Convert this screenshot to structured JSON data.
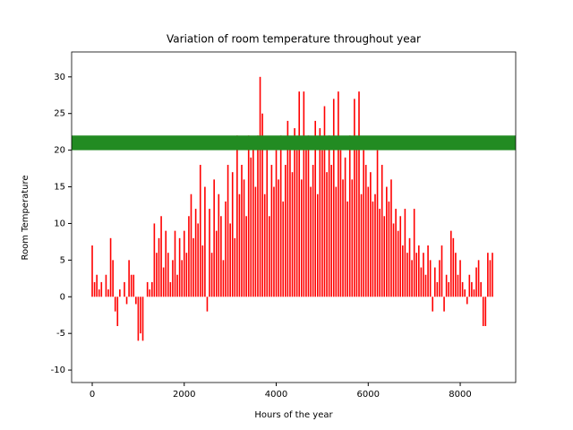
{
  "chart_data": {
    "type": "bar",
    "title": "Variation of room temperature throughout year",
    "x_label": "Hours of the year",
    "y_label": "Room Temperature",
    "color": "#ff0000",
    "x": [
      0,
      50,
      100,
      150,
      200,
      250,
      300,
      350,
      400,
      450,
      500,
      550,
      600,
      650,
      700,
      750,
      800,
      850,
      900,
      950,
      1000,
      1050,
      1100,
      1150,
      1200,
      1250,
      1300,
      1350,
      1400,
      1450,
      1500,
      1550,
      1600,
      1650,
      1700,
      1750,
      1800,
      1850,
      1900,
      1950,
      2000,
      2050,
      2100,
      2150,
      2200,
      2250,
      2300,
      2350,
      2400,
      2450,
      2500,
      2550,
      2600,
      2650,
      2700,
      2750,
      2800,
      2850,
      2900,
      2950,
      3000,
      3050,
      3100,
      3150,
      3200,
      3250,
      3300,
      3350,
      3400,
      3450,
      3500,
      3550,
      3600,
      3650,
      3700,
      3750,
      3800,
      3850,
      3900,
      3950,
      4000,
      4050,
      4100,
      4150,
      4200,
      4250,
      4300,
      4350,
      4400,
      4450,
      4500,
      4550,
      4600,
      4650,
      4700,
      4750,
      4800,
      4850,
      4900,
      4950,
      5000,
      5050,
      5100,
      5150,
      5200,
      5250,
      5300,
      5350,
      5400,
      5450,
      5500,
      5550,
      5600,
      5650,
      5700,
      5750,
      5800,
      5850,
      5900,
      5950,
      6000,
      6050,
      6100,
      6150,
      6200,
      6250,
      6300,
      6350,
      6400,
      6450,
      6500,
      6550,
      6600,
      6650,
      6700,
      6750,
      6800,
      6850,
      6900,
      6950,
      7000,
      7050,
      7100,
      7150,
      7200,
      7250,
      7300,
      7350,
      7400,
      7450,
      7500,
      7550,
      7600,
      7650,
      7700,
      7750,
      7800,
      7850,
      7900,
      7950,
      8000,
      8050,
      8100,
      8150,
      8200,
      8250,
      8300,
      8350,
      8400,
      8450,
      8500,
      8550,
      8600,
      8650,
      8700
    ],
    "values": [
      7,
      2,
      3,
      1,
      2,
      0,
      3,
      1,
      8,
      5,
      -2,
      -4,
      1,
      0,
      2,
      -1,
      5,
      3,
      3,
      -1,
      -6,
      -5,
      -6,
      0,
      2,
      1,
      2,
      10,
      6,
      8,
      11,
      4,
      9,
      6,
      2,
      5,
      9,
      3,
      8,
      5,
      9,
      6,
      11,
      14,
      8,
      12,
      10,
      18,
      7,
      15,
      -2,
      12,
      6,
      16,
      9,
      14,
      11,
      5,
      13,
      18,
      10,
      17,
      8,
      22,
      14,
      18,
      16,
      11,
      22,
      19,
      21,
      15,
      22,
      30,
      25,
      14,
      20,
      11,
      18,
      15,
      20,
      16,
      22,
      13,
      18,
      24,
      21,
      17,
      23,
      20,
      28,
      16,
      28,
      20,
      22,
      15,
      18,
      24,
      14,
      23,
      20,
      26,
      17,
      22,
      18,
      27,
      15,
      28,
      20,
      16,
      19,
      13,
      22,
      16,
      27,
      21,
      28,
      14,
      20,
      18,
      15,
      17,
      13,
      14,
      20,
      12,
      18,
      11,
      15,
      13,
      16,
      10,
      12,
      9,
      11,
      7,
      12,
      6,
      8,
      5,
      12,
      6,
      7,
      4,
      6,
      3,
      7,
      5,
      -2,
      4,
      2,
      5,
      7,
      -2,
      3,
      2,
      9,
      8,
      6,
      3,
      5,
      2,
      1,
      -1,
      3,
      2,
      1,
      4,
      5,
      2,
      -4,
      -4,
      6,
      5,
      6
    ],
    "hspan": {
      "ymin": 20,
      "ymax": 22,
      "color": "#228b22"
    },
    "xlim": [
      -448,
      9206
    ],
    "xticks": [
      0,
      2000,
      4000,
      6000,
      8000
    ],
    "ylim": [
      -11.7,
      33.4
    ],
    "yticks": [
      -10,
      -5,
      0,
      5,
      10,
      15,
      20,
      25,
      30
    ]
  }
}
